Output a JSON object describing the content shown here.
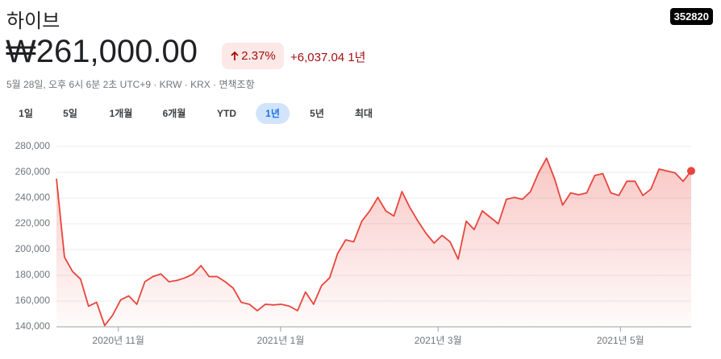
{
  "header": {
    "name": "하이브",
    "ticker": "352820",
    "price": "₩261,000.00",
    "change_pct": "2.37%",
    "change_abs": "+6,037.04",
    "period": "1년",
    "meta": "5월 28일, 오후 6시 6분 2초 UTC+9 · KRW · KRX · 면책조항"
  },
  "tabs": [
    "1일",
    "5일",
    "1개월",
    "6개월",
    "YTD",
    "1년",
    "5년",
    "최대"
  ],
  "selected_tab": 5,
  "chart_data": {
    "type": "line",
    "color": "#e8453c",
    "values": [
      255000,
      194000,
      183000,
      177000,
      156000,
      159000,
      141000,
      149000,
      161000,
      164000,
      157500,
      175000,
      179000,
      181000,
      175000,
      176000,
      178000,
      181000,
      187500,
      179000,
      179000,
      175000,
      170000,
      159000,
      157500,
      152500,
      157500,
      157000,
      157500,
      156000,
      152500,
      167000,
      157500,
      172000,
      178000,
      197000,
      207500,
      206000,
      222000,
      230000,
      240500,
      230000,
      226000,
      245000,
      232500,
      222000,
      212500,
      205000,
      211000,
      206000,
      192500,
      222000,
      215500,
      230000,
      225000,
      220000,
      239000,
      240500,
      239000,
      245000,
      259500,
      271000,
      255000,
      234500,
      244000,
      242500,
      244000,
      257500,
      259000,
      244000,
      242000,
      253000,
      253000,
      242000,
      247000,
      262500,
      261000,
      259500,
      253000,
      261000
    ],
    "xlim": [
      0,
      79
    ],
    "xticks": [
      {
        "value": 7.7,
        "label": "2020년 11월"
      },
      {
        "value": 27.9,
        "label": "2021년 1월"
      },
      {
        "value": 47.5,
        "label": "2021년 3월"
      },
      {
        "value": 70.2,
        "label": "2021년 5월"
      }
    ],
    "ylim": [
      140000,
      280000
    ],
    "yticks": [
      {
        "value": 140000,
        "label": "140,000"
      },
      {
        "value": 160000,
        "label": "160,000"
      },
      {
        "value": 180000,
        "label": "180,000"
      },
      {
        "value": 200000,
        "label": "200,000"
      },
      {
        "value": 220000,
        "label": "220,000"
      },
      {
        "value": 240000,
        "label": "240,000"
      },
      {
        "value": 260000,
        "label": "260,000"
      },
      {
        "value": 280000,
        "label": "280,000"
      }
    ],
    "grid": true
  }
}
